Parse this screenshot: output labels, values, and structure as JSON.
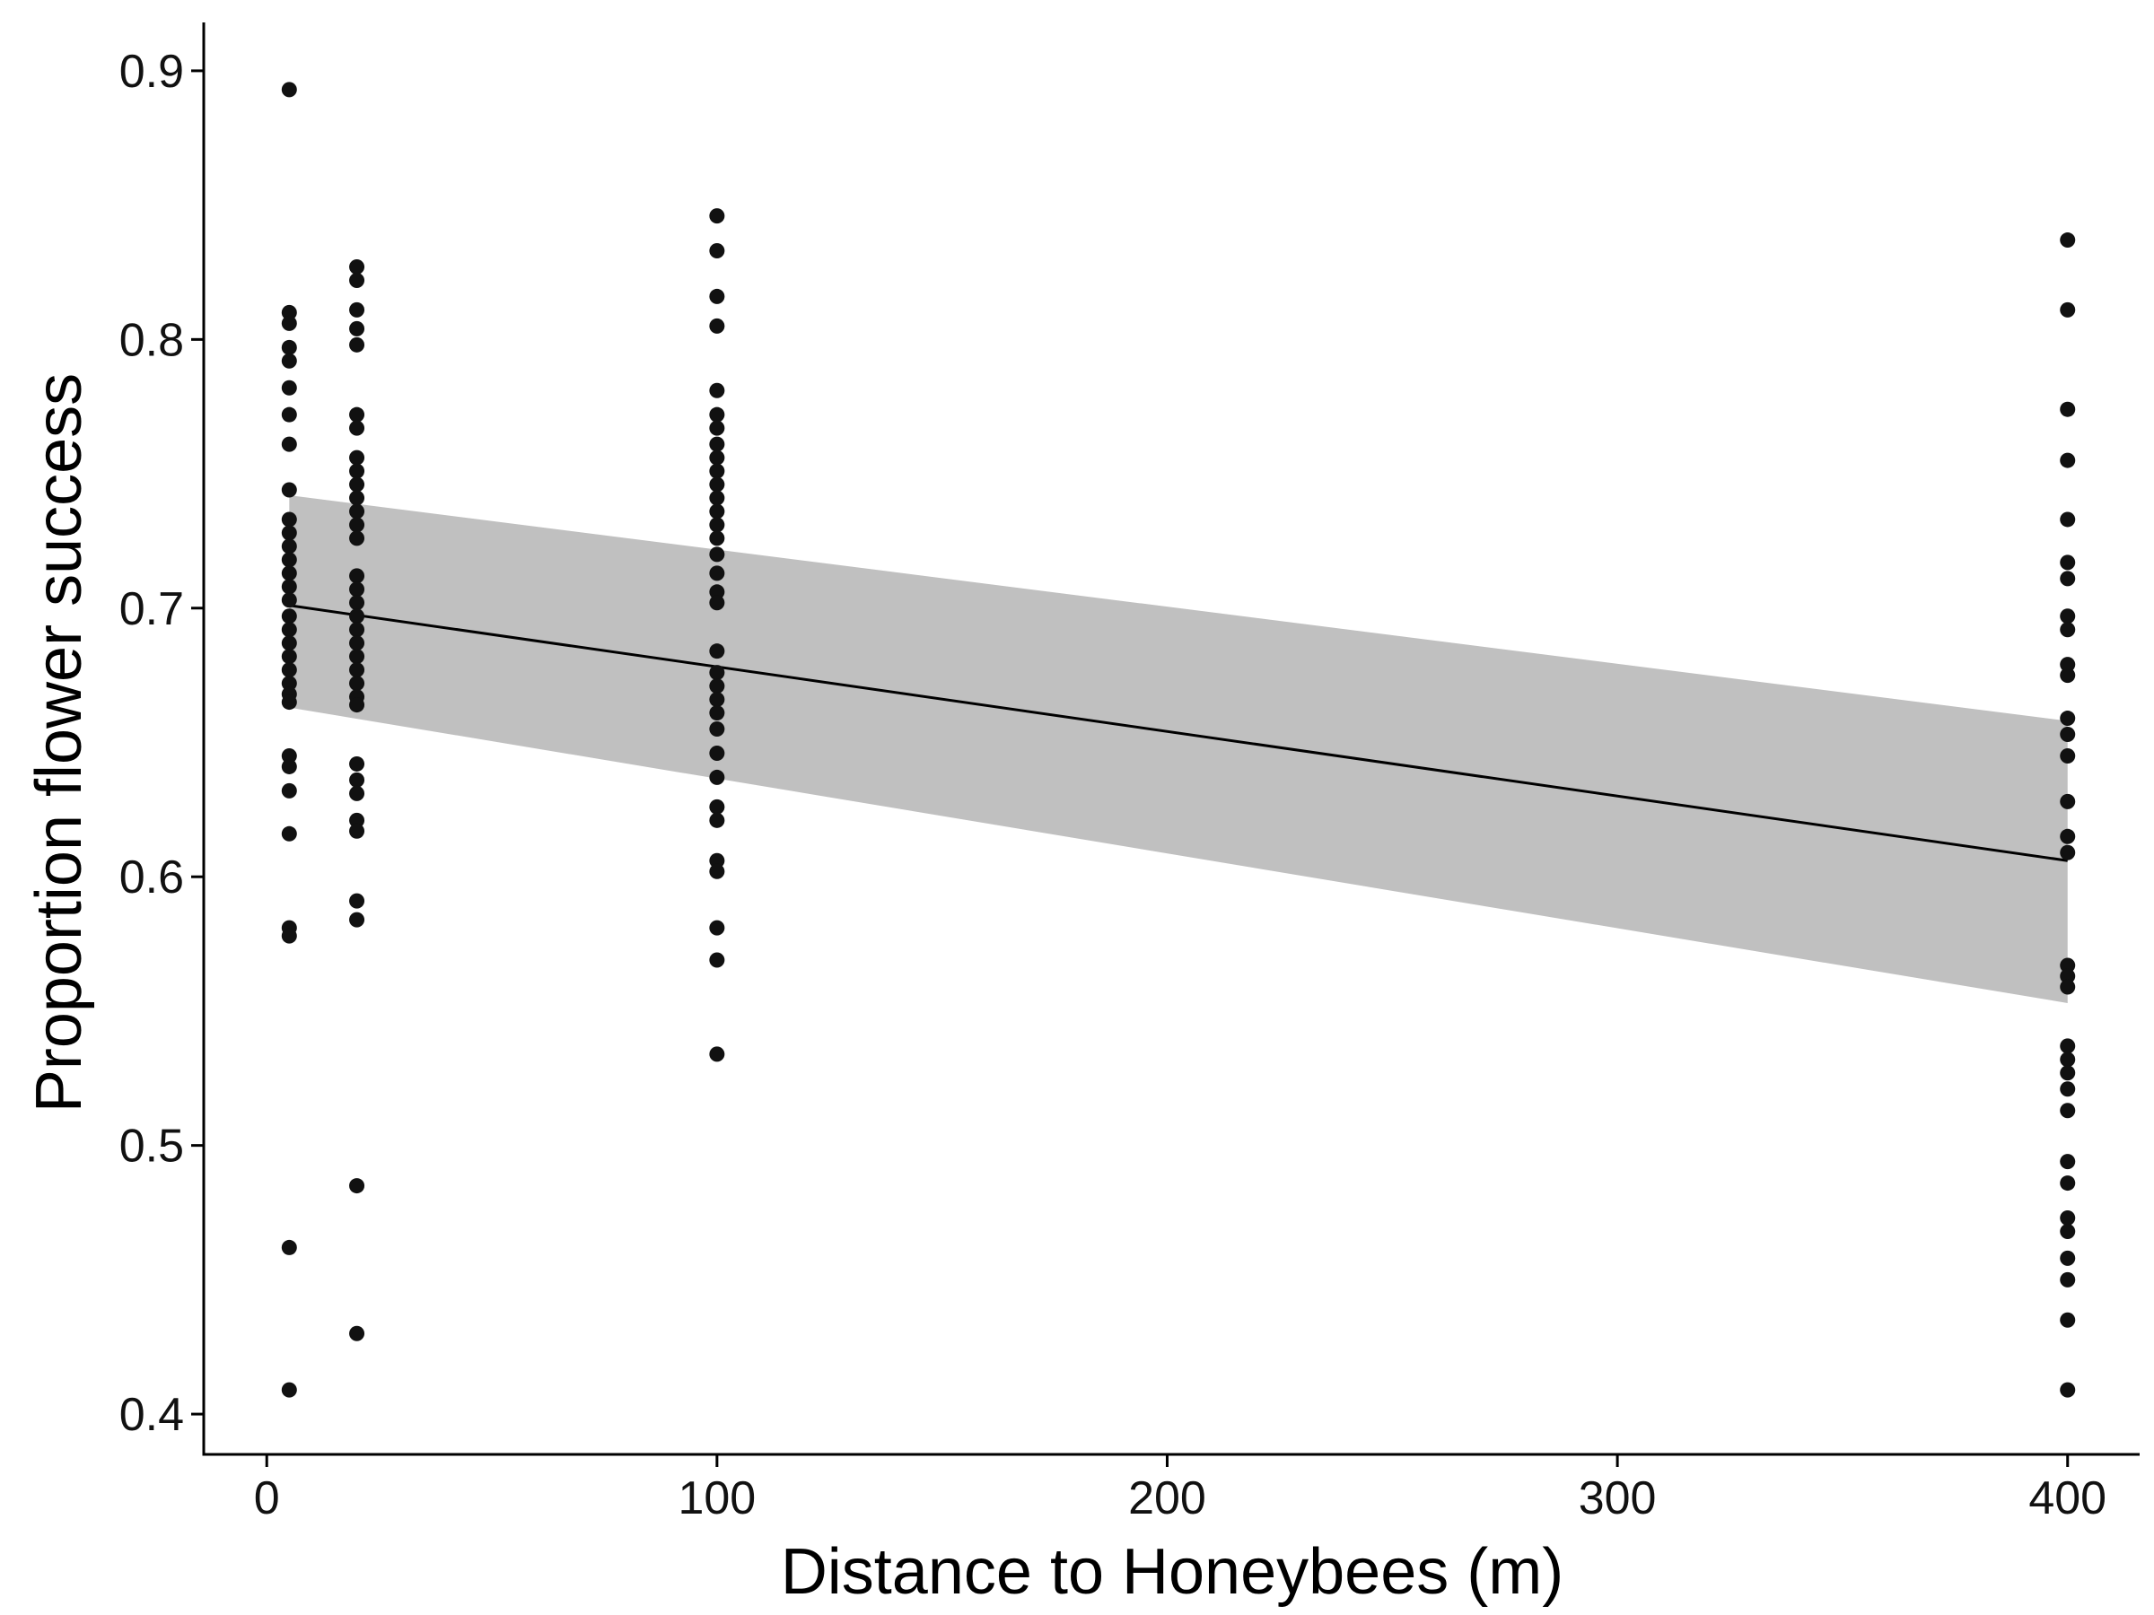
{
  "chart_data": {
    "type": "scatter",
    "xlabel": "Distance to Honeybees (m)",
    "ylabel": "Proportion flower success",
    "xlim": [
      -14,
      416
    ],
    "ylim": [
      0.385,
      0.918
    ],
    "x_ticks": [
      0,
      100,
      200,
      300,
      400
    ],
    "x_tick_labels": [
      "0",
      "100",
      "200",
      "300",
      "400"
    ],
    "y_ticks": [
      0.4,
      0.5,
      0.6,
      0.7,
      0.8,
      0.9
    ],
    "y_tick_labels": [
      "0.4",
      "0.5",
      "0.6",
      "0.7",
      "0.8",
      "0.9"
    ],
    "grid": false,
    "legend": "none",
    "colors": {
      "points": "#111111",
      "fit_line": "#000000",
      "ci_band": "#c0c0c0",
      "axis": "#000000"
    },
    "groups": [
      {
        "x": 5,
        "y": [
          0.893,
          0.81,
          0.806,
          0.797,
          0.792,
          0.782,
          0.772,
          0.761,
          0.744,
          0.733,
          0.728,
          0.723,
          0.718,
          0.713,
          0.708,
          0.703,
          0.697,
          0.692,
          0.687,
          0.682,
          0.677,
          0.672,
          0.668,
          0.665,
          0.645,
          0.641,
          0.632,
          0.616,
          0.581,
          0.578,
          0.462,
          0.409
        ]
      },
      {
        "x": 20,
        "y": [
          0.827,
          0.822,
          0.811,
          0.804,
          0.798,
          0.772,
          0.767,
          0.756,
          0.751,
          0.746,
          0.741,
          0.736,
          0.731,
          0.726,
          0.712,
          0.707,
          0.702,
          0.697,
          0.692,
          0.687,
          0.682,
          0.677,
          0.672,
          0.667,
          0.664,
          0.642,
          0.636,
          0.631,
          0.621,
          0.617,
          0.591,
          0.584,
          0.485,
          0.43
        ]
      },
      {
        "x": 100,
        "y": [
          0.846,
          0.833,
          0.816,
          0.805,
          0.781,
          0.772,
          0.767,
          0.761,
          0.756,
          0.751,
          0.746,
          0.741,
          0.736,
          0.731,
          0.726,
          0.72,
          0.713,
          0.706,
          0.702,
          0.684,
          0.676,
          0.671,
          0.666,
          0.661,
          0.655,
          0.646,
          0.637,
          0.626,
          0.621,
          0.606,
          0.602,
          0.581,
          0.569,
          0.534
        ]
      },
      {
        "x": 400,
        "y": [
          0.837,
          0.811,
          0.774,
          0.755,
          0.733,
          0.717,
          0.711,
          0.697,
          0.692,
          0.679,
          0.675,
          0.659,
          0.653,
          0.645,
          0.628,
          0.615,
          0.609,
          0.567,
          0.563,
          0.559,
          0.537,
          0.532,
          0.527,
          0.521,
          0.513,
          0.494,
          0.486,
          0.473,
          0.468,
          0.458,
          0.45,
          0.435,
          0.409
        ]
      }
    ],
    "fit": {
      "x": [
        5,
        400
      ],
      "y": [
        0.701,
        0.606
      ]
    },
    "ci_band": {
      "x": [
        5,
        400
      ],
      "upper": [
        0.742,
        0.658
      ],
      "lower": [
        0.663,
        0.553
      ]
    }
  }
}
